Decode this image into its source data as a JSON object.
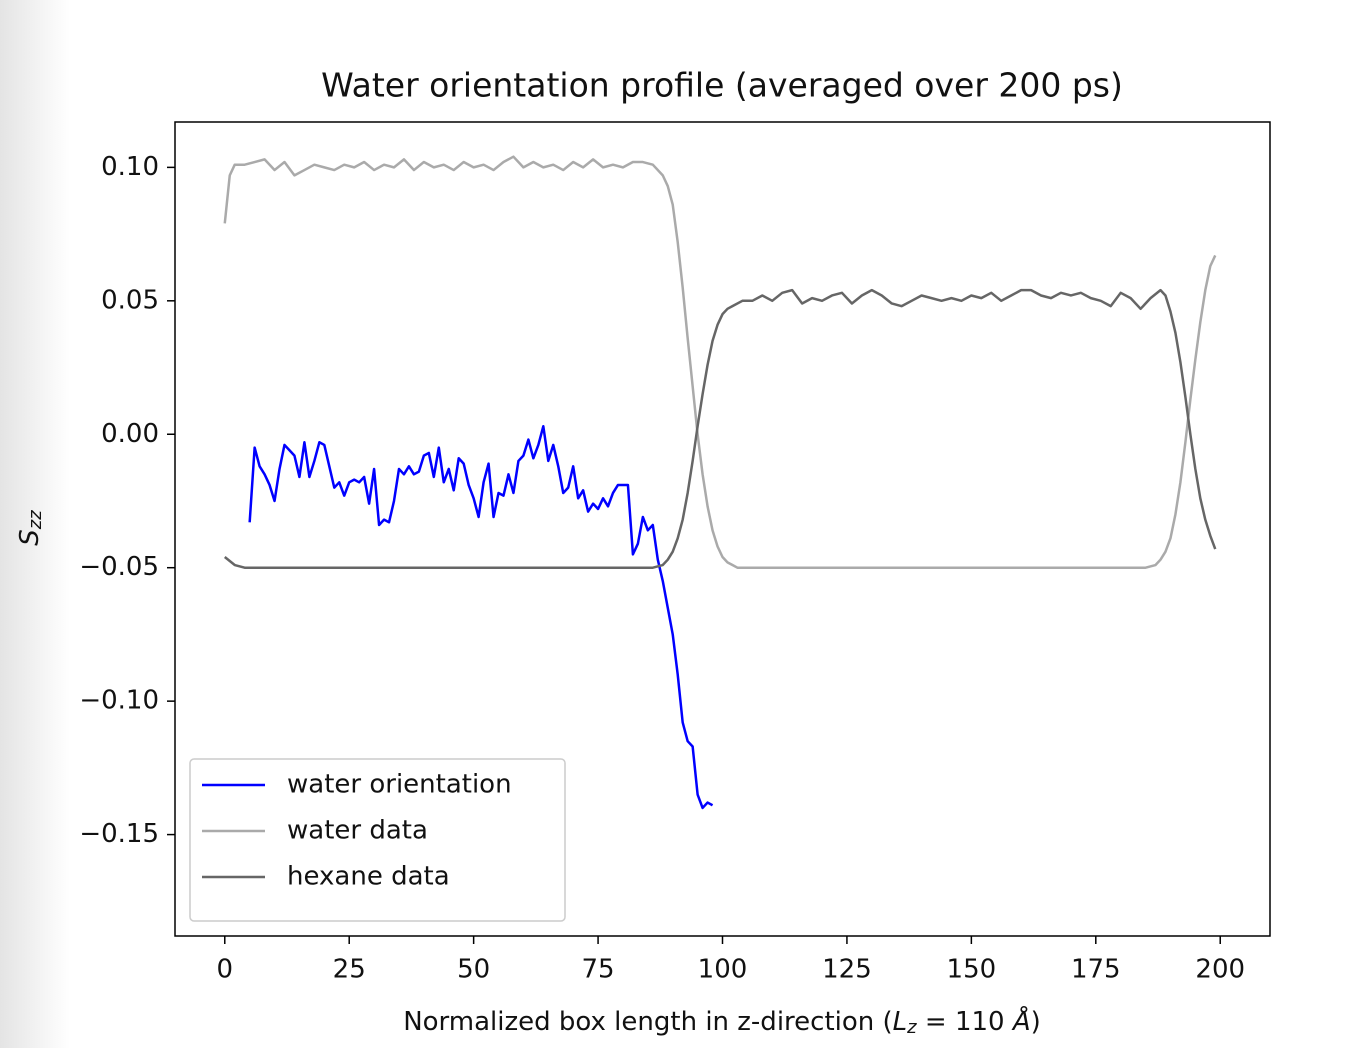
{
  "chart_data": {
    "type": "line",
    "title": "Water orientation profile (averaged over 200 ps)",
    "xlabel": [
      "Normalized box length in z-direction (",
      "L",
      "z",
      " = 110 ",
      "Å",
      ")"
    ],
    "ylabel": [
      "S",
      "zz"
    ],
    "xlim": [
      -10,
      210
    ],
    "ylim": [
      -0.188,
      0.117
    ],
    "xticks": [
      0,
      25,
      50,
      75,
      100,
      125,
      150,
      175,
      200
    ],
    "yticks": [
      {
        "value": -0.15,
        "label": "−0.15"
      },
      {
        "value": -0.1,
        "label": "−0.10"
      },
      {
        "value": -0.05,
        "label": "−0.05"
      },
      {
        "value": 0,
        "label": "0.00"
      },
      {
        "value": 0.05,
        "label": "0.05"
      },
      {
        "value": 0.1,
        "label": "0.10"
      }
    ],
    "legend": "lower left",
    "series": [
      {
        "name": "water orientation",
        "color": "#0000ff",
        "x": [
          5,
          6,
          7,
          8,
          9,
          10,
          11,
          12,
          13,
          14,
          15,
          16,
          17,
          18,
          19,
          20,
          21,
          22,
          23,
          24,
          25,
          26,
          27,
          28,
          29,
          30,
          31,
          32,
          33,
          34,
          35,
          36,
          37,
          38,
          39,
          40,
          41,
          42,
          43,
          44,
          45,
          46,
          47,
          48,
          49,
          50,
          51,
          52,
          53,
          54,
          55,
          56,
          57,
          58,
          59,
          60,
          61,
          62,
          63,
          64,
          65,
          66,
          67,
          68,
          69,
          70,
          71,
          72,
          73,
          74,
          75,
          76,
          77,
          78,
          79,
          80,
          81,
          82,
          83,
          84,
          85,
          86,
          87,
          88,
          89,
          90,
          91,
          92,
          93,
          94,
          95,
          96,
          97,
          98
        ],
        "values": [
          -0.033,
          -0.005,
          -0.012,
          -0.015,
          -0.019,
          -0.025,
          -0.013,
          -0.004,
          -0.006,
          -0.008,
          -0.016,
          -0.003,
          -0.016,
          -0.01,
          -0.003,
          -0.004,
          -0.012,
          -0.02,
          -0.018,
          -0.023,
          -0.018,
          -0.017,
          -0.018,
          -0.016,
          -0.026,
          -0.013,
          -0.034,
          -0.032,
          -0.033,
          -0.025,
          -0.013,
          -0.015,
          -0.012,
          -0.015,
          -0.014,
          -0.008,
          -0.007,
          -0.016,
          -0.005,
          -0.018,
          -0.013,
          -0.021,
          -0.009,
          -0.011,
          -0.019,
          -0.024,
          -0.031,
          -0.018,
          -0.011,
          -0.031,
          -0.022,
          -0.023,
          -0.015,
          -0.022,
          -0.01,
          -0.008,
          -0.002,
          -0.009,
          -0.004,
          0.003,
          -0.01,
          -0.004,
          -0.012,
          -0.022,
          -0.02,
          -0.012,
          -0.024,
          -0.021,
          -0.029,
          -0.026,
          -0.028,
          -0.024,
          -0.027,
          -0.022,
          -0.019,
          -0.019,
          -0.019,
          -0.045,
          -0.041,
          -0.031,
          -0.036,
          -0.034,
          -0.047,
          -0.055,
          -0.065,
          -0.075,
          -0.09,
          -0.108,
          -0.115,
          -0.117,
          -0.135,
          -0.14,
          -0.138,
          -0.139
        ]
      },
      {
        "name": "water data",
        "color": "#aaaaaa",
        "x": [
          0,
          1,
          2,
          4,
          6,
          8,
          10,
          12,
          14,
          16,
          18,
          20,
          22,
          24,
          26,
          28,
          30,
          32,
          34,
          36,
          38,
          40,
          42,
          44,
          46,
          48,
          50,
          52,
          54,
          56,
          58,
          60,
          62,
          64,
          66,
          68,
          70,
          72,
          74,
          76,
          78,
          80,
          82,
          84,
          86,
          88,
          89,
          90,
          91,
          92,
          93,
          94,
          95,
          96,
          97,
          98,
          99,
          100,
          101,
          102,
          103,
          104,
          106,
          110,
          130,
          150,
          170,
          185,
          187,
          188,
          189,
          190,
          191,
          192,
          193,
          194,
          195,
          196,
          197,
          198,
          199
        ],
        "values": [
          0.079,
          0.097,
          0.101,
          0.101,
          0.102,
          0.103,
          0.099,
          0.102,
          0.097,
          0.099,
          0.101,
          0.1,
          0.099,
          0.101,
          0.1,
          0.102,
          0.099,
          0.101,
          0.1,
          0.103,
          0.099,
          0.102,
          0.1,
          0.101,
          0.099,
          0.102,
          0.1,
          0.101,
          0.099,
          0.102,
          0.104,
          0.1,
          0.102,
          0.1,
          0.101,
          0.099,
          0.102,
          0.1,
          0.103,
          0.1,
          0.101,
          0.1,
          0.102,
          0.102,
          0.101,
          0.097,
          0.093,
          0.086,
          0.072,
          0.055,
          0.036,
          0.018,
          0.0,
          -0.015,
          -0.027,
          -0.036,
          -0.042,
          -0.046,
          -0.048,
          -0.049,
          -0.05,
          -0.05,
          -0.05,
          -0.05,
          -0.05,
          -0.05,
          -0.05,
          -0.05,
          -0.049,
          -0.047,
          -0.044,
          -0.039,
          -0.03,
          -0.018,
          -0.003,
          0.013,
          0.028,
          0.042,
          0.054,
          0.063,
          0.067
        ]
      },
      {
        "name": "hexane data",
        "color": "#666666",
        "x": [
          0,
          2,
          4,
          10,
          30,
          50,
          70,
          86,
          88,
          89,
          90,
          91,
          92,
          93,
          94,
          95,
          96,
          97,
          98,
          99,
          100,
          101,
          102,
          104,
          106,
          108,
          110,
          112,
          114,
          116,
          118,
          120,
          122,
          124,
          126,
          128,
          130,
          132,
          134,
          136,
          138,
          140,
          142,
          144,
          146,
          148,
          150,
          152,
          154,
          156,
          158,
          160,
          162,
          164,
          166,
          168,
          170,
          172,
          174,
          176,
          178,
          180,
          182,
          184,
          186,
          188,
          189,
          190,
          191,
          192,
          193,
          194,
          195,
          196,
          197,
          198,
          199
        ],
        "values": [
          -0.046,
          -0.049,
          -0.05,
          -0.05,
          -0.05,
          -0.05,
          -0.05,
          -0.05,
          -0.049,
          -0.047,
          -0.044,
          -0.039,
          -0.032,
          -0.022,
          -0.01,
          0.003,
          0.015,
          0.026,
          0.035,
          0.041,
          0.045,
          0.047,
          0.048,
          0.05,
          0.05,
          0.052,
          0.05,
          0.053,
          0.054,
          0.049,
          0.051,
          0.05,
          0.052,
          0.053,
          0.049,
          0.052,
          0.054,
          0.052,
          0.049,
          0.048,
          0.05,
          0.052,
          0.051,
          0.05,
          0.051,
          0.05,
          0.052,
          0.051,
          0.053,
          0.05,
          0.052,
          0.054,
          0.054,
          0.052,
          0.051,
          0.053,
          0.052,
          0.053,
          0.051,
          0.05,
          0.048,
          0.053,
          0.051,
          0.047,
          0.051,
          0.054,
          0.052,
          0.046,
          0.038,
          0.027,
          0.014,
          0.0,
          -0.013,
          -0.024,
          -0.032,
          -0.038,
          -0.043
        ]
      }
    ]
  }
}
